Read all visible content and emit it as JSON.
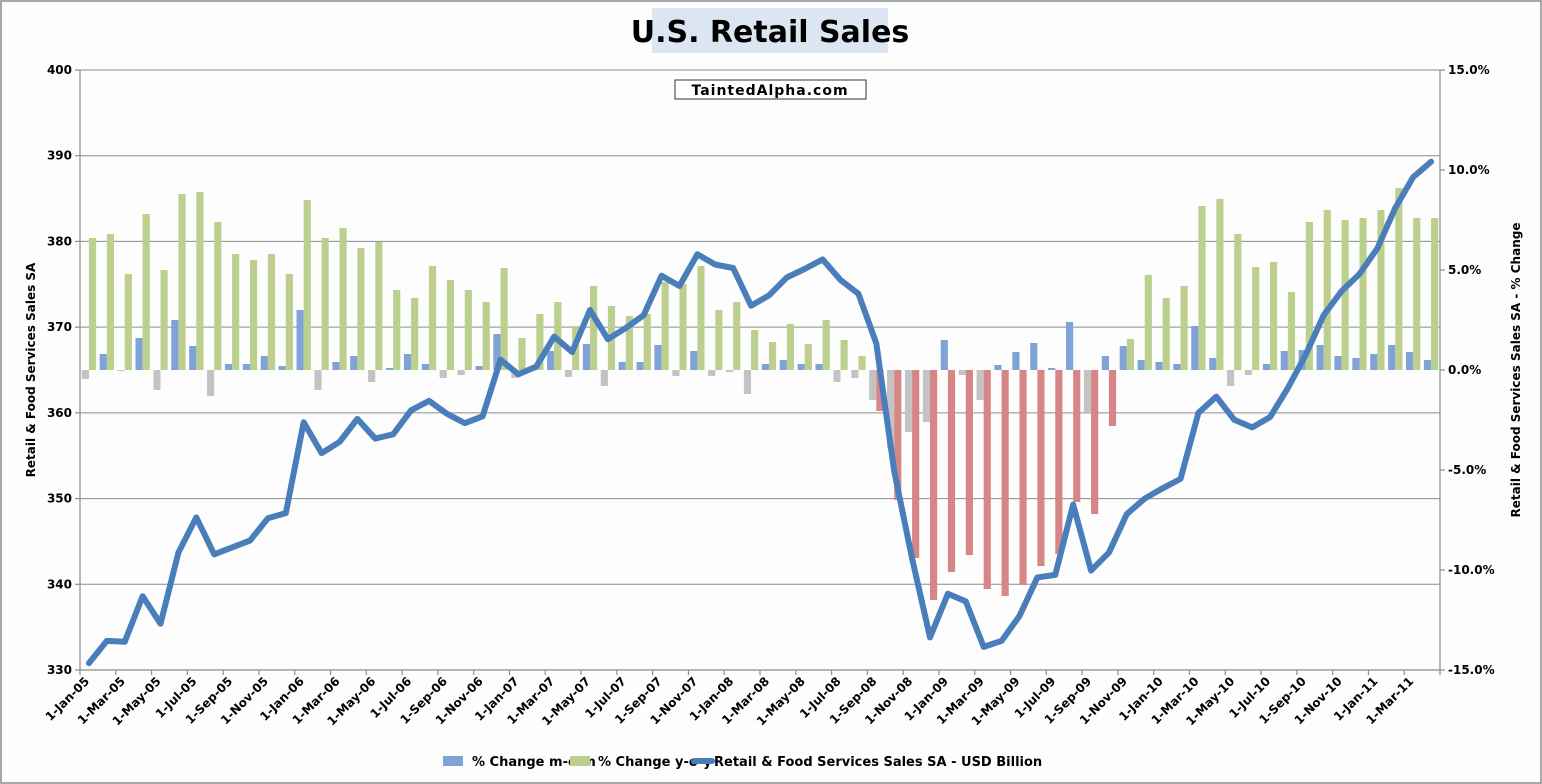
{
  "chart_data": {
    "type": "bar+line",
    "title": "U.S. Retail Sales",
    "watermark": "TaintedAlpha.com",
    "ylabel_left": "Retail & Food Services Sales SA",
    "ylabel_right": "Retail & Food Services Sales SA - % Change",
    "ylim_left": [
      330,
      400
    ],
    "ylim_right": [
      -15,
      15
    ],
    "y_ticks_left": [
      "330",
      "340",
      "350",
      "360",
      "370",
      "380",
      "390",
      "400"
    ],
    "y_ticks_right": [
      "-15.0%",
      "-10.0%",
      "-5.0%",
      "0.0%",
      "5.0%",
      "10.0%",
      "15.0%"
    ],
    "x_start": "Jan-2005",
    "x_end": "Apr-2011",
    "x_tick_labels": [
      "1-Jan-05",
      "1-Mar-05",
      "1-May-05",
      "1-Jul-05",
      "1-Sep-05",
      "1-Nov-05",
      "1-Jan-06",
      "1-Mar-06",
      "1-May-06",
      "1-Jul-06",
      "1-Sep-06",
      "1-Nov-06",
      "1-Jan-07",
      "1-Mar-07",
      "1-May-07",
      "1-Jul-07",
      "1-Sep-07",
      "1-Nov-07",
      "1-Jan-08",
      "1-Mar-08",
      "1-May-08",
      "1-Jul-08",
      "1-Sep-08",
      "1-Nov-08",
      "1-Jan-09",
      "1-Mar-09",
      "1-May-09",
      "1-Jul-09",
      "1-Sep-09",
      "1-Nov-09",
      "1-Jan-10",
      "1-Mar-10",
      "1-May-10",
      "1-Jul-10",
      "1-Sep-10",
      "1-Nov-10",
      "1-Jan-11",
      "1-Mar-11"
    ],
    "grid": true,
    "legend_position": "bottom",
    "series": [
      {
        "name": "% Change m-o-m",
        "type": "bar",
        "axis": "right",
        "color": "#7fa3d6",
        "negative_color": "#c3c3c3",
        "values": [
          -0.45,
          0.8,
          -0.05,
          1.6,
          -1.0,
          2.5,
          1.2,
          -1.3,
          0.3,
          0.3,
          0.7,
          0.2,
          3.0,
          -1.0,
          0.4,
          0.7,
          -0.6,
          0.1,
          0.8,
          0.3,
          -0.4,
          -0.25,
          0.2,
          1.8,
          -0.4,
          0.0,
          0.95,
          -0.35,
          1.3,
          -0.8,
          0.4,
          0.4,
          1.25,
          -0.3,
          0.95,
          -0.3,
          -0.1,
          -1.2,
          0.3,
          0.5,
          0.3,
          0.3,
          -0.6,
          -0.4,
          -1.5,
          -3.9,
          -3.1,
          -2.6,
          1.5,
          -0.25,
          -1.5,
          0.25,
          0.9,
          1.35,
          0.1,
          2.4,
          -2.1,
          0.7,
          1.2,
          0.5,
          0.4,
          0.3,
          2.2,
          0.6,
          -0.8,
          -0.25,
          0.3,
          0.95,
          1.0,
          1.25,
          0.7,
          0.6,
          0.8,
          1.25,
          0.9,
          0.5
        ]
      },
      {
        "name": "% Change y-o-y",
        "type": "bar",
        "axis": "right",
        "color": "#bccf8f",
        "negative_color": "#d68686",
        "values": [
          6.6,
          6.8,
          4.8,
          7.8,
          5.0,
          8.8,
          8.9,
          7.4,
          5.8,
          5.5,
          5.8,
          4.8,
          8.5,
          6.6,
          7.1,
          6.1,
          6.4,
          4.0,
          3.6,
          5.2,
          4.5,
          4.0,
          3.4,
          5.1,
          1.6,
          2.8,
          3.4,
          2.2,
          4.2,
          3.2,
          2.7,
          2.8,
          4.4,
          4.3,
          5.2,
          3.0,
          3.4,
          2.0,
          1.4,
          2.3,
          1.3,
          2.5,
          1.5,
          0.7,
          -2.05,
          -6.5,
          -9.4,
          -11.5,
          -10.1,
          -9.25,
          -10.95,
          -11.3,
          -10.75,
          -9.8,
          -9.2,
          -6.6,
          -7.2,
          -2.8,
          1.55,
          4.75,
          3.6,
          4.2,
          8.2,
          8.55,
          6.8,
          5.15,
          5.4,
          3.9,
          7.4,
          8.0,
          7.5,
          7.6,
          8.0,
          9.1,
          7.6,
          7.6
        ]
      },
      {
        "name": "Retail & Food Services Sales SA - USD Billion",
        "type": "line",
        "axis": "left",
        "color": "#4a7ebb",
        "values": [
          330.8,
          333.4,
          333.3,
          338.6,
          335.4,
          343.7,
          347.8,
          343.5,
          344.3,
          345.1,
          347.7,
          348.3,
          358.9,
          355.3,
          356.6,
          359.3,
          357.0,
          357.5,
          360.3,
          361.4,
          359.9,
          358.8,
          359.6,
          366.2,
          364.5,
          365.4,
          368.9,
          367.1,
          372.0,
          368.6,
          369.9,
          371.4,
          376.0,
          374.8,
          378.5,
          377.3,
          376.9,
          372.5,
          373.7,
          375.8,
          376.8,
          377.9,
          375.5,
          373.9,
          368.1,
          353.2,
          343.0,
          333.8,
          338.9,
          338.0,
          332.7,
          333.4,
          336.3,
          340.8,
          341.1,
          349.3,
          341.6,
          343.7,
          348.2,
          350.0,
          351.2,
          352.3,
          360.0,
          361.9,
          359.2,
          358.3,
          359.5,
          362.9,
          366.8,
          371.4,
          374.2,
          376.2,
          379.2,
          383.9,
          387.5,
          389.3
        ]
      }
    ]
  }
}
